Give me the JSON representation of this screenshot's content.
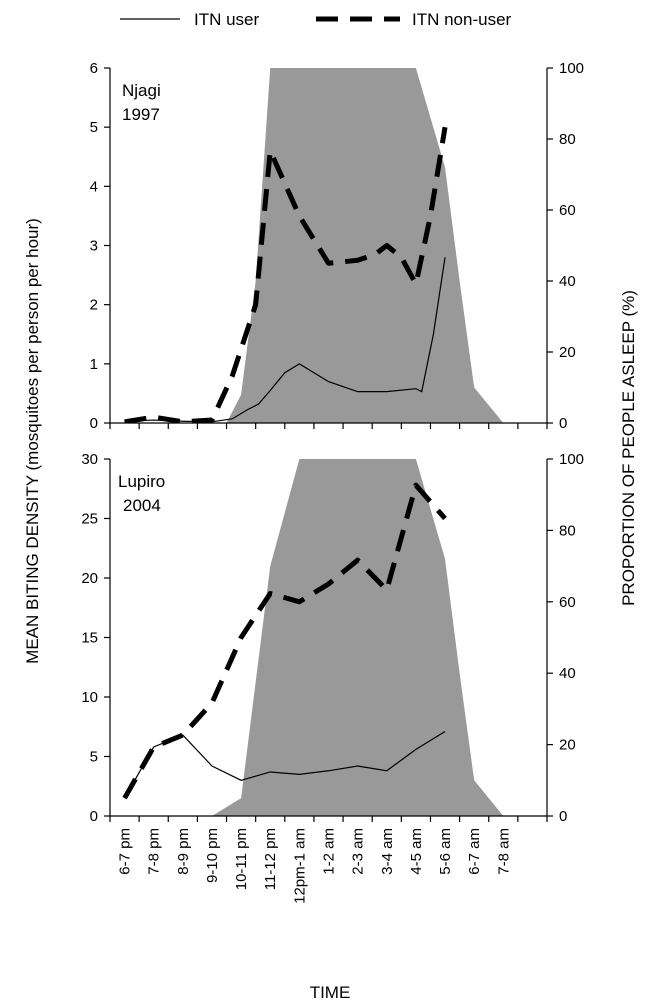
{
  "legend": [
    {
      "label": "ITN user",
      "style": "solid-thin"
    },
    {
      "label": "ITN non-user",
      "style": "dashed-thick"
    }
  ],
  "axes": {
    "y_left_label": "MEAN BITING DENSITY (mosquitoes per person per hour)",
    "y_right_label": "PROPORTION OF PEOPLE ASLEEP (%)",
    "x_label": "TIME"
  },
  "colors": {
    "asleep_area": "#999999",
    "lines": "#000000"
  },
  "chart_data": [
    {
      "type": "line",
      "panel_label": [
        "Njagi",
        "1997"
      ],
      "categories": [
        "6-7 pm",
        "7-8 pm",
        "8-9 pm",
        "9-10 pm",
        "10-11 pm",
        "11-12 pm",
        "12pm-1 am",
        "1-2 am",
        "2-3 am",
        "3-4 am",
        "4-5 am",
        "5-6 am",
        "6-7 am",
        "7-8 am"
      ],
      "x_slots": 15,
      "ylim_left": [
        0,
        6
      ],
      "yticks_left": [
        0,
        1,
        2,
        3,
        4,
        5,
        6
      ],
      "ylim_right": [
        0,
        100
      ],
      "yticks_right": [
        0,
        20,
        40,
        60,
        80,
        100
      ],
      "series": [
        {
          "name": "ITN user",
          "axis": "left",
          "style": "solid-thin",
          "x": [
            0,
            1,
            2,
            3,
            3.7,
            4.2,
            4.6,
            5,
            5.5,
            6,
            7,
            8,
            9,
            10,
            10.2,
            10.6,
            11
          ],
          "values": [
            0.03,
            0.05,
            0.03,
            0.02,
            0.07,
            0.22,
            0.32,
            0.55,
            0.85,
            1.0,
            0.7,
            0.53,
            0.53,
            0.58,
            0.53,
            1.5,
            2.8
          ]
        },
        {
          "name": "ITN non-user",
          "axis": "left",
          "style": "dashed-thick",
          "x": [
            0,
            1,
            2,
            3,
            3.7,
            4.5,
            5,
            6,
            7,
            8,
            8.6,
            9,
            9.5,
            10,
            10.5,
            11
          ],
          "values": [
            0.02,
            0.1,
            0.02,
            0.05,
            0.8,
            2.0,
            4.6,
            3.5,
            2.7,
            2.75,
            2.85,
            3.0,
            2.8,
            2.35,
            3.5,
            5.0
          ]
        },
        {
          "name": "asleep",
          "axis": "right",
          "style": "area",
          "x": [
            3.5,
            4,
            4.5,
            5,
            10,
            11,
            11.5,
            12,
            12.5,
            13
          ],
          "values": [
            0,
            8,
            40,
            100,
            100,
            72,
            40,
            10,
            5,
            0
          ]
        }
      ]
    },
    {
      "type": "line",
      "panel_label": [
        "Lupiro",
        "2004"
      ],
      "categories": [
        "6-7 pm",
        "7-8 pm",
        "8-9 pm",
        "9-10 pm",
        "10-11 pm",
        "11-12 pm",
        "12pm-1 am",
        "1-2 am",
        "2-3 am",
        "3-4 am",
        "4-5 am",
        "5-6 am",
        "6-7 am",
        "7-8 am"
      ],
      "x_slots": 15,
      "ylim_left": [
        0,
        30
      ],
      "yticks_left": [
        0,
        5,
        10,
        15,
        20,
        25,
        30
      ],
      "ylim_right": [
        0,
        100
      ],
      "yticks_right": [
        0,
        20,
        40,
        60,
        80,
        100
      ],
      "series": [
        {
          "name": "ITN user",
          "axis": "left",
          "style": "solid-thin",
          "x": [
            0,
            1,
            2,
            3,
            4,
            5,
            6,
            7,
            8,
            9,
            10,
            11
          ],
          "values": [
            1.5,
            5.8,
            6.8,
            4.2,
            3.0,
            3.7,
            3.5,
            3.8,
            4.2,
            3.8,
            5.6,
            7.1
          ]
        },
        {
          "name": "ITN non-user",
          "axis": "left",
          "style": "dashed-thick",
          "x": [
            0,
            1,
            2,
            3,
            4,
            5,
            6,
            7,
            8,
            9,
            10,
            11
          ],
          "values": [
            1.5,
            5.8,
            6.8,
            9.5,
            15.0,
            18.7,
            18.0,
            19.5,
            21.5,
            19.0,
            27.8,
            25.0
          ]
        },
        {
          "name": "asleep",
          "axis": "right",
          "style": "area",
          "x": [
            3,
            4,
            5,
            6,
            10,
            11,
            11.5,
            12,
            12.5,
            13
          ],
          "values": [
            0,
            5,
            70,
            100,
            100,
            72,
            40,
            10,
            5,
            0
          ]
        }
      ]
    }
  ]
}
